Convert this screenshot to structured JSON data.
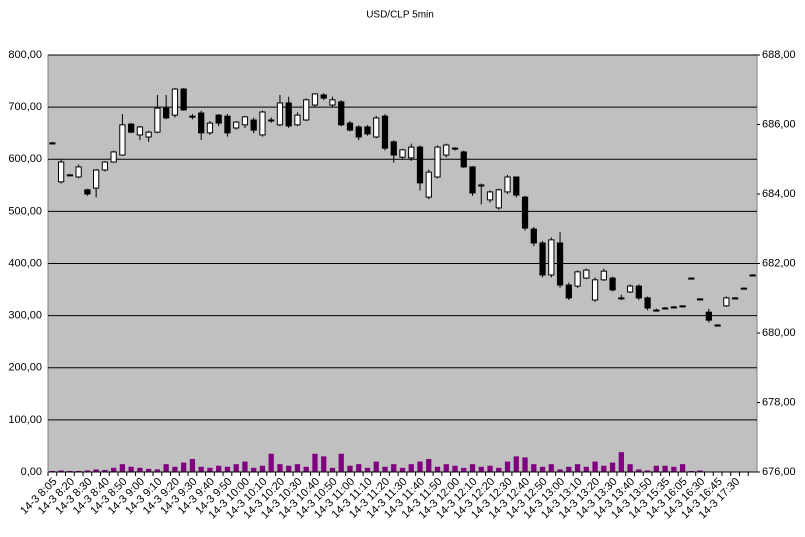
{
  "chart_data": {
    "type": "candlestick",
    "title": "USD/CLP  5min",
    "categories": [
      "14-3 8:05",
      null,
      "14-3 8:20",
      null,
      "14-3 8:30",
      null,
      "14-3 8:40",
      null,
      "14-3 8:50",
      null,
      "14-3 9:00",
      null,
      "14-3 9:10",
      null,
      "14-3 9:20",
      null,
      "14-3 9:30",
      null,
      "14-3 9:40",
      null,
      "14-3 9:50",
      null,
      "14-3 10:00",
      null,
      "14-3 10:10",
      null,
      "14-3 10:20",
      null,
      "14-3 10:30",
      null,
      "14-3 10:40",
      null,
      "14-3 10:50",
      null,
      "14-3 11:00",
      null,
      "14-3 11:10",
      null,
      "14-3 11:20",
      null,
      "14-3 11:30",
      null,
      "14-3 11:40",
      null,
      "14-3 11:50",
      null,
      "14-3 12:00",
      null,
      "14-3 12:10",
      null,
      "14-3 12:20",
      null,
      "14-3 12:30",
      null,
      "14-3 12:40",
      null,
      "14-3 12:50",
      null,
      "14-3 13:00",
      null,
      "14-3 13:10",
      null,
      "14-3 13:20",
      null,
      "14-3 13:30",
      null,
      "14-3 13:40",
      null,
      "14-3 13:50",
      null,
      "14-3 15:35",
      null,
      "14-3 16:05",
      null,
      "14-3 16:30",
      null,
      "14-3 16:45",
      null,
      "14-3 17:30",
      null,
      null
    ],
    "ohlc": {
      "axis": "y2",
      "up_color": "#ffffff",
      "down_color": "#000000",
      "open": [
        685.47,
        684.35,
        684.55,
        684.49,
        684.12,
        684.17,
        684.69,
        684.92,
        685.12,
        686.01,
        685.7,
        685.64,
        685.78,
        686.47,
        686.27,
        687.02,
        686.24,
        686.33,
        685.76,
        686.27,
        686.24,
        685.9,
        685.99,
        686.13,
        685.7,
        686.13,
        685.99,
        686.62,
        685.99,
        686.13,
        686.56,
        686.85,
        686.56,
        686.65,
        686.04,
        685.93,
        685.93,
        685.64,
        686.24,
        685.5,
        685.06,
        685.04,
        685.35,
        683.91,
        684.49,
        685.12,
        685.32,
        685.21,
        684.78,
        684.26,
        683.83,
        683.6,
        684.06,
        684.49,
        683.91,
        682.99,
        682.59,
        681.67,
        682.59,
        681.38,
        681.35,
        681.58,
        680.95,
        681.53,
        681.58,
        681.01,
        681.18,
        681.35,
        681.01,
        680.66,
        680.72,
        680.75,
        680.78,
        681.58,
        680.98,
        680.6,
        680.23,
        680.78,
        681.01,
        681.29,
        681.67
      ],
      "high": [
        685.5,
        685.0,
        684.58,
        684.85,
        684.15,
        684.72,
        684.95,
        685.25,
        686.3,
        686.05,
        685.96,
        685.82,
        686.85,
        686.85,
        687.05,
        687.05,
        686.3,
        686.4,
        686.1,
        686.3,
        686.3,
        686.1,
        686.25,
        686.2,
        686.4,
        686.2,
        686.85,
        686.8,
        686.35,
        686.75,
        686.9,
        686.9,
        686.8,
        686.7,
        686.1,
        685.98,
        685.98,
        686.25,
        686.3,
        685.55,
        685.3,
        685.45,
        685.4,
        684.7,
        685.4,
        685.45,
        685.35,
        685.25,
        684.8,
        684.3,
        684.1,
        684.15,
        684.55,
        684.3,
        683.95,
        683.05,
        682.65,
        682.75,
        682.9,
        681.45,
        681.8,
        681.85,
        681.6,
        681.85,
        681.62,
        681.1,
        681.4,
        681.4,
        681.05,
        680.7,
        680.75,
        680.78,
        680.8,
        681.6,
        681.0,
        680.7,
        680.25,
        681.05,
        681.03,
        681.31,
        681.69
      ],
      "low": [
        685.44,
        684.3,
        684.52,
        684.45,
        683.95,
        683.9,
        684.65,
        684.9,
        685.1,
        685.75,
        685.55,
        685.5,
        685.75,
        686.15,
        686.2,
        686.4,
        686.15,
        685.55,
        685.7,
        685.95,
        685.65,
        685.85,
        685.9,
        685.75,
        685.65,
        686.05,
        685.95,
        685.9,
        685.95,
        686.1,
        686.5,
        686.7,
        686.5,
        685.95,
        685.8,
        685.55,
        685.68,
        685.6,
        685.25,
        684.9,
        685.0,
        684.95,
        684.1,
        683.85,
        684.45,
        685.05,
        685.25,
        684.75,
        683.95,
        683.7,
        683.75,
        683.55,
        684.0,
        683.9,
        682.95,
        682.5,
        681.6,
        681.6,
        681.3,
        680.95,
        681.3,
        681.55,
        680.9,
        681.5,
        681.2,
        680.95,
        681.15,
        680.95,
        680.65,
        680.62,
        680.7,
        680.72,
        680.76,
        681.56,
        680.96,
        680.3,
        680.21,
        680.75,
        680.99,
        681.27,
        681.65
      ],
      "close": [
        685.47,
        684.92,
        684.55,
        684.78,
        684.0,
        684.69,
        684.92,
        685.21,
        685.99,
        685.78,
        685.93,
        685.78,
        686.47,
        686.19,
        687.02,
        686.42,
        686.24,
        685.76,
        686.04,
        686.04,
        685.76,
        686.07,
        686.22,
        685.84,
        686.36,
        686.13,
        686.62,
        685.96,
        686.27,
        686.71,
        686.88,
        686.76,
        686.71,
        685.99,
        685.84,
        685.64,
        685.73,
        686.19,
        685.32,
        685.12,
        685.27,
        685.35,
        684.32,
        684.63,
        685.35,
        685.41,
        685.32,
        684.78,
        684.03,
        684.26,
        684.06,
        684.12,
        684.49,
        683.97,
        683.02,
        682.59,
        681.67,
        682.68,
        681.38,
        681.01,
        681.76,
        681.81,
        681.53,
        681.78,
        681.24,
        681.01,
        681.35,
        681.01,
        680.72,
        680.66,
        680.72,
        680.75,
        680.78,
        681.58,
        680.98,
        680.37,
        680.23,
        681.01,
        681.01,
        681.29,
        681.67
      ]
    },
    "volume": {
      "color": "#800080",
      "values": [
        2,
        3,
        2,
        2,
        3,
        5,
        4,
        8,
        15,
        10,
        8,
        6,
        5,
        15,
        10,
        18,
        25,
        10,
        8,
        12,
        10,
        15,
        20,
        8,
        12,
        35,
        15,
        12,
        15,
        10,
        35,
        30,
        8,
        35,
        12,
        15,
        8,
        20,
        10,
        15,
        8,
        15,
        20,
        25,
        10,
        15,
        12,
        8,
        15,
        10,
        12,
        8,
        20,
        30,
        28,
        15,
        10,
        15,
        5,
        10,
        15,
        10,
        20,
        12,
        18,
        38,
        15,
        5,
        3,
        12,
        12,
        10,
        15,
        2,
        3,
        0,
        0,
        0,
        0,
        0,
        0
      ]
    },
    "ylim": [
      0,
      800
    ],
    "yticks": [
      {
        "value": 0,
        "label": "0,00"
      },
      {
        "value": 100,
        "label": "100,00"
      },
      {
        "value": 200,
        "label": "200,00"
      },
      {
        "value": 300,
        "label": "300,00"
      },
      {
        "value": 400,
        "label": "400,00"
      },
      {
        "value": 500,
        "label": "500,00"
      },
      {
        "value": 600,
        "label": "600,00"
      },
      {
        "value": 700,
        "label": "700,00"
      },
      {
        "value": 800,
        "label": "800,00"
      }
    ],
    "y2lim": [
      676,
      688
    ],
    "y2ticks": [
      {
        "value": 676,
        "label": "676,00"
      },
      {
        "value": 678,
        "label": "678,00"
      },
      {
        "value": 680,
        "label": "680,00"
      },
      {
        "value": 682,
        "label": "682,00"
      },
      {
        "value": 684,
        "label": "684,00"
      },
      {
        "value": 686,
        "label": "686,00"
      },
      {
        "value": 688,
        "label": "688,00"
      }
    ],
    "grid": true,
    "plot_background": "#c0c0c0"
  }
}
